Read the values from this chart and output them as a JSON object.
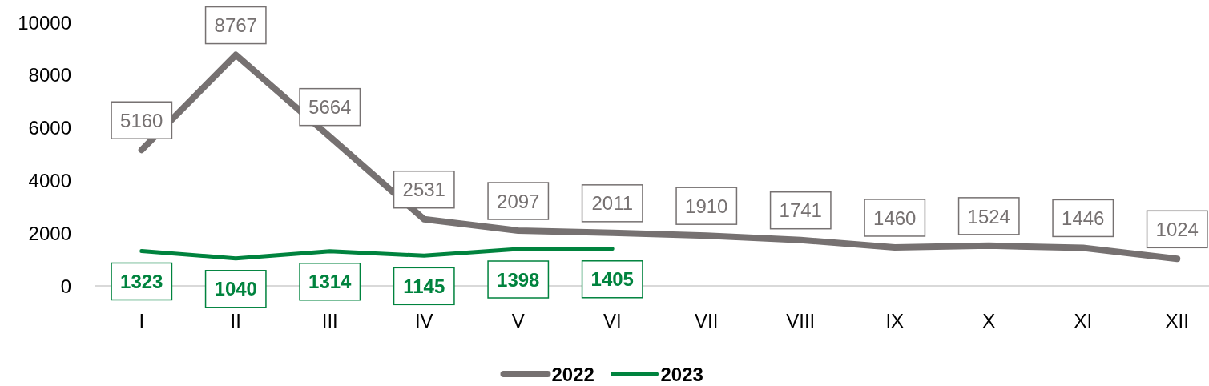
{
  "chart_data": {
    "type": "line",
    "categories": [
      "I",
      "II",
      "III",
      "IV",
      "V",
      "VI",
      "VII",
      "VIII",
      "IX",
      "X",
      "XI",
      "XII"
    ],
    "series": [
      {
        "name": "2022",
        "color": "#767171",
        "values": [
          5160,
          8767,
          5664,
          2531,
          2097,
          2011,
          1910,
          1741,
          1460,
          1524,
          1446,
          1024
        ]
      },
      {
        "name": "2023",
        "color": "#00833e",
        "values": [
          1323,
          1040,
          1314,
          1145,
          1398,
          1405,
          null,
          null,
          null,
          null,
          null,
          null
        ]
      }
    ],
    "ylim": [
      0,
      10000
    ],
    "yticks": [
      0,
      2000,
      4000,
      6000,
      8000,
      10000
    ],
    "legend": "bottom",
    "data_labels": true
  }
}
